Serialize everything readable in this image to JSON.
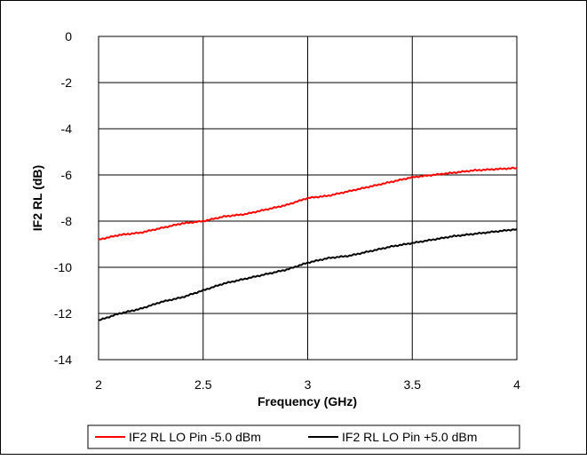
{
  "chart_data": {
    "type": "line",
    "title": "",
    "xlabel": "Frequency (GHz)",
    "ylabel": "IF2 RL (dB)",
    "xlim": [
      2,
      4
    ],
    "ylim": [
      -14,
      0
    ],
    "x_ticks": [
      2,
      2.5,
      3,
      3.5,
      4
    ],
    "x_tick_labels": [
      "2",
      "2.5",
      "3",
      "3.5",
      "4"
    ],
    "y_ticks": [
      0,
      -2,
      -4,
      -6,
      -8,
      -10,
      -12,
      -14
    ],
    "y_tick_labels": [
      "0",
      "-2",
      "-4",
      "-6",
      "-8",
      "-10",
      "-12",
      "-14"
    ],
    "grid": true,
    "legend_position": "bottom",
    "series": [
      {
        "name": "IF2 RL LO Pin -5.0 dBm",
        "color": "#ff0000",
        "x": [
          2.0,
          2.1,
          2.2,
          2.3,
          2.4,
          2.5,
          2.6,
          2.7,
          2.8,
          2.9,
          3.0,
          3.1,
          3.2,
          3.3,
          3.4,
          3.5,
          3.6,
          3.7,
          3.8,
          3.9,
          4.0
        ],
        "y": [
          -8.8,
          -8.6,
          -8.5,
          -8.3,
          -8.1,
          -8.0,
          -7.8,
          -7.7,
          -7.5,
          -7.3,
          -7.0,
          -6.9,
          -6.7,
          -6.5,
          -6.3,
          -6.1,
          -6.0,
          -5.9,
          -5.8,
          -5.75,
          -5.7
        ]
      },
      {
        "name": "IF2 RL LO Pin +5.0 dBm",
        "color": "#000000",
        "x": [
          2.0,
          2.1,
          2.2,
          2.3,
          2.4,
          2.5,
          2.6,
          2.7,
          2.8,
          2.9,
          3.0,
          3.1,
          3.2,
          3.3,
          3.4,
          3.5,
          3.6,
          3.7,
          3.8,
          3.9,
          4.0
        ],
        "y": [
          -12.3,
          -12.0,
          -11.8,
          -11.5,
          -11.3,
          -11.0,
          -10.7,
          -10.5,
          -10.3,
          -10.1,
          -9.8,
          -9.6,
          -9.5,
          -9.3,
          -9.1,
          -8.95,
          -8.8,
          -8.65,
          -8.55,
          -8.45,
          -8.35
        ]
      }
    ]
  }
}
